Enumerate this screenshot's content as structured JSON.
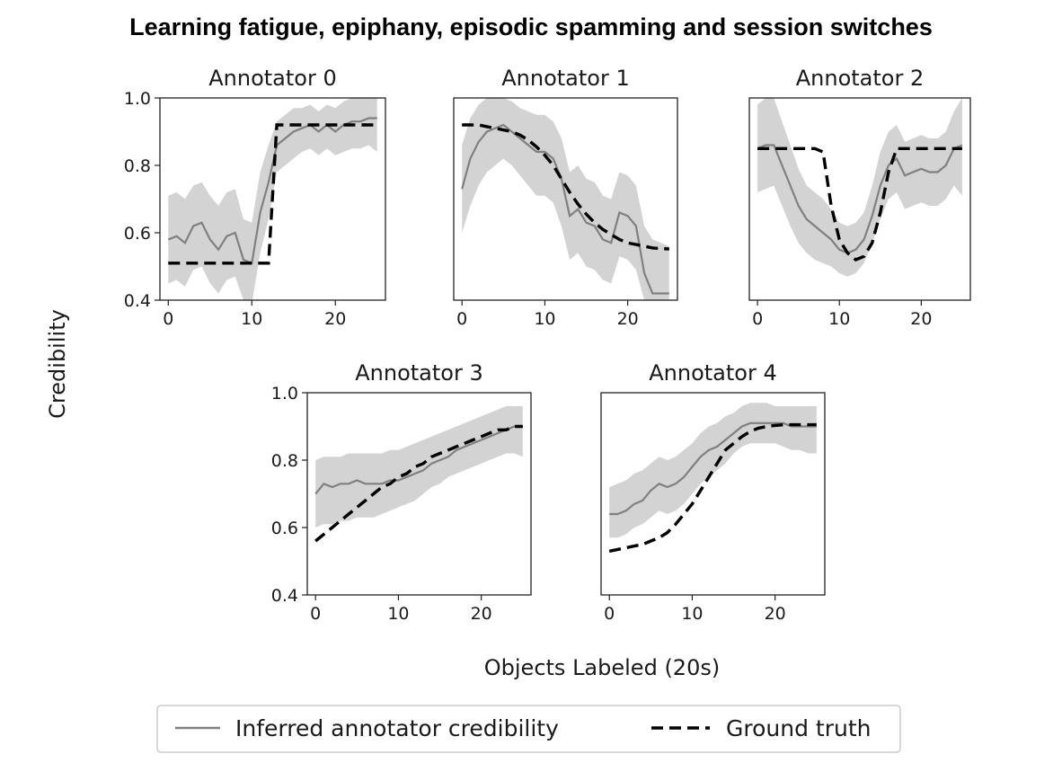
{
  "chart_data": {
    "type": "line",
    "title": "Learning fatigue, epiphany, episodic spamming and session switches",
    "xlabel": "Objects Labeled (20s)",
    "ylabel": "Credibility",
    "xlim": [
      -1,
      26
    ],
    "ylim": [
      0.4,
      1.0
    ],
    "xticks": [
      "0",
      "10",
      "20"
    ],
    "yticks": [
      "0.4",
      "0.6",
      "0.8",
      "1.0"
    ],
    "legend": {
      "placement": "bottom-center",
      "entries": [
        "Inferred annotator credibility",
        "Ground truth"
      ]
    },
    "colors": {
      "inferred": "#808080",
      "band": "#d3d3d3",
      "ground_truth": "#000000"
    },
    "x": [
      0,
      1,
      2,
      3,
      4,
      5,
      6,
      7,
      8,
      9,
      10,
      11,
      12,
      13,
      14,
      15,
      16,
      17,
      18,
      19,
      20,
      21,
      22,
      23,
      24,
      25
    ],
    "panels": [
      {
        "title": "Annotator 0",
        "inferred": [
          0.58,
          0.59,
          0.57,
          0.62,
          0.63,
          0.58,
          0.55,
          0.59,
          0.6,
          0.52,
          0.51,
          0.66,
          0.75,
          0.86,
          0.88,
          0.9,
          0.91,
          0.92,
          0.9,
          0.92,
          0.9,
          0.92,
          0.93,
          0.93,
          0.94,
          0.94
        ],
        "band_low": [
          0.45,
          0.46,
          0.44,
          0.49,
          0.5,
          0.45,
          0.42,
          0.46,
          0.47,
          0.4,
          0.39,
          0.54,
          0.64,
          0.78,
          0.8,
          0.82,
          0.84,
          0.85,
          0.83,
          0.85,
          0.83,
          0.84,
          0.85,
          0.85,
          0.86,
          0.84
        ],
        "band_high": [
          0.71,
          0.72,
          0.7,
          0.74,
          0.75,
          0.71,
          0.68,
          0.72,
          0.73,
          0.64,
          0.63,
          0.78,
          0.86,
          0.93,
          0.95,
          0.97,
          0.97,
          0.98,
          0.96,
          0.98,
          0.97,
          0.99,
          1.0,
          1.0,
          1.0,
          1.0
        ],
        "ground_truth": [
          0.51,
          0.51,
          0.51,
          0.51,
          0.51,
          0.51,
          0.51,
          0.51,
          0.51,
          0.51,
          0.51,
          0.51,
          0.51,
          0.92,
          0.92,
          0.92,
          0.92,
          0.92,
          0.92,
          0.92,
          0.92,
          0.92,
          0.92,
          0.92,
          0.92,
          0.92
        ]
      },
      {
        "title": "Annotator 1",
        "inferred": [
          0.73,
          0.82,
          0.87,
          0.9,
          0.91,
          0.92,
          0.9,
          0.88,
          0.86,
          0.84,
          0.84,
          0.82,
          0.76,
          0.65,
          0.67,
          0.63,
          0.62,
          0.58,
          0.57,
          0.66,
          0.65,
          0.62,
          0.48,
          0.42,
          0.42,
          0.42
        ],
        "band_low": [
          0.6,
          0.68,
          0.74,
          0.78,
          0.8,
          0.82,
          0.8,
          0.77,
          0.74,
          0.71,
          0.71,
          0.69,
          0.62,
          0.52,
          0.54,
          0.5,
          0.49,
          0.46,
          0.45,
          0.53,
          0.52,
          0.49,
          0.4,
          0.4,
          0.4,
          0.4
        ],
        "band_high": [
          0.86,
          0.94,
          0.98,
          1.0,
          1.0,
          1.0,
          0.99,
          0.97,
          0.96,
          0.95,
          0.95,
          0.93,
          0.88,
          0.78,
          0.8,
          0.76,
          0.75,
          0.71,
          0.7,
          0.78,
          0.77,
          0.74,
          0.62,
          0.58,
          0.57,
          0.56
        ],
        "ground_truth": [
          0.92,
          0.92,
          0.92,
          0.915,
          0.91,
          0.905,
          0.9,
          0.89,
          0.875,
          0.855,
          0.83,
          0.8,
          0.76,
          0.72,
          0.685,
          0.655,
          0.63,
          0.61,
          0.595,
          0.58,
          0.57,
          0.565,
          0.56,
          0.555,
          0.553,
          0.552
        ]
      },
      {
        "title": "Annotator 2",
        "inferred": [
          0.85,
          0.86,
          0.86,
          0.8,
          0.74,
          0.68,
          0.64,
          0.62,
          0.6,
          0.58,
          0.55,
          0.54,
          0.55,
          0.58,
          0.65,
          0.74,
          0.8,
          0.82,
          0.77,
          0.78,
          0.79,
          0.78,
          0.78,
          0.8,
          0.85,
          0.86
        ],
        "band_low": [
          0.72,
          0.73,
          0.74,
          0.68,
          0.62,
          0.57,
          0.54,
          0.52,
          0.51,
          0.5,
          0.48,
          0.47,
          0.48,
          0.51,
          0.57,
          0.64,
          0.7,
          0.72,
          0.67,
          0.68,
          0.69,
          0.68,
          0.68,
          0.7,
          0.74,
          0.71
        ],
        "band_high": [
          0.98,
          1.0,
          1.0,
          0.93,
          0.86,
          0.79,
          0.74,
          0.72,
          0.7,
          0.67,
          0.63,
          0.62,
          0.63,
          0.66,
          0.74,
          0.84,
          0.9,
          0.92,
          0.87,
          0.88,
          0.89,
          0.88,
          0.88,
          0.9,
          0.96,
          1.0
        ],
        "ground_truth": [
          0.85,
          0.85,
          0.85,
          0.85,
          0.85,
          0.85,
          0.85,
          0.85,
          0.84,
          0.68,
          0.58,
          0.54,
          0.52,
          0.53,
          0.57,
          0.66,
          0.78,
          0.85,
          0.85,
          0.85,
          0.85,
          0.85,
          0.85,
          0.85,
          0.85,
          0.85
        ]
      },
      {
        "title": "Annotator 3",
        "inferred": [
          0.7,
          0.73,
          0.72,
          0.73,
          0.73,
          0.74,
          0.73,
          0.73,
          0.73,
          0.74,
          0.74,
          0.75,
          0.76,
          0.77,
          0.79,
          0.8,
          0.81,
          0.83,
          0.84,
          0.85,
          0.86,
          0.87,
          0.88,
          0.89,
          0.9,
          0.9
        ],
        "band_low": [
          0.6,
          0.61,
          0.61,
          0.62,
          0.62,
          0.63,
          0.63,
          0.63,
          0.64,
          0.65,
          0.66,
          0.67,
          0.68,
          0.7,
          0.72,
          0.73,
          0.75,
          0.76,
          0.77,
          0.78,
          0.79,
          0.8,
          0.81,
          0.82,
          0.82,
          0.81
        ],
        "band_high": [
          0.8,
          0.81,
          0.81,
          0.81,
          0.82,
          0.82,
          0.82,
          0.82,
          0.82,
          0.83,
          0.83,
          0.84,
          0.85,
          0.86,
          0.87,
          0.88,
          0.89,
          0.9,
          0.91,
          0.92,
          0.93,
          0.94,
          0.95,
          0.96,
          0.96,
          0.96
        ],
        "ground_truth": [
          0.56,
          0.58,
          0.6,
          0.62,
          0.64,
          0.66,
          0.68,
          0.7,
          0.72,
          0.73,
          0.75,
          0.76,
          0.78,
          0.79,
          0.81,
          0.82,
          0.83,
          0.84,
          0.85,
          0.86,
          0.87,
          0.88,
          0.89,
          0.89,
          0.9,
          0.9
        ]
      },
      {
        "title": "Annotator 4",
        "inferred": [
          0.64,
          0.64,
          0.65,
          0.67,
          0.68,
          0.71,
          0.73,
          0.72,
          0.73,
          0.75,
          0.78,
          0.81,
          0.83,
          0.84,
          0.86,
          0.88,
          0.9,
          0.91,
          0.91,
          0.91,
          0.91,
          0.91,
          0.9,
          0.9,
          0.9,
          0.9
        ],
        "band_low": [
          0.57,
          0.57,
          0.58,
          0.6,
          0.61,
          0.63,
          0.65,
          0.64,
          0.65,
          0.67,
          0.7,
          0.73,
          0.75,
          0.77,
          0.79,
          0.82,
          0.84,
          0.85,
          0.85,
          0.85,
          0.85,
          0.84,
          0.83,
          0.83,
          0.82,
          0.82
        ],
        "band_high": [
          0.72,
          0.73,
          0.74,
          0.76,
          0.77,
          0.79,
          0.81,
          0.8,
          0.81,
          0.83,
          0.85,
          0.88,
          0.9,
          0.91,
          0.93,
          0.94,
          0.96,
          0.97,
          0.97,
          0.97,
          0.96,
          0.96,
          0.96,
          0.96,
          0.96,
          0.96
        ],
        "ground_truth": [
          0.53,
          0.535,
          0.54,
          0.545,
          0.55,
          0.56,
          0.57,
          0.585,
          0.61,
          0.64,
          0.67,
          0.71,
          0.75,
          0.79,
          0.83,
          0.85,
          0.87,
          0.885,
          0.895,
          0.9,
          0.903,
          0.905,
          0.905,
          0.905,
          0.905,
          0.905
        ]
      }
    ]
  }
}
